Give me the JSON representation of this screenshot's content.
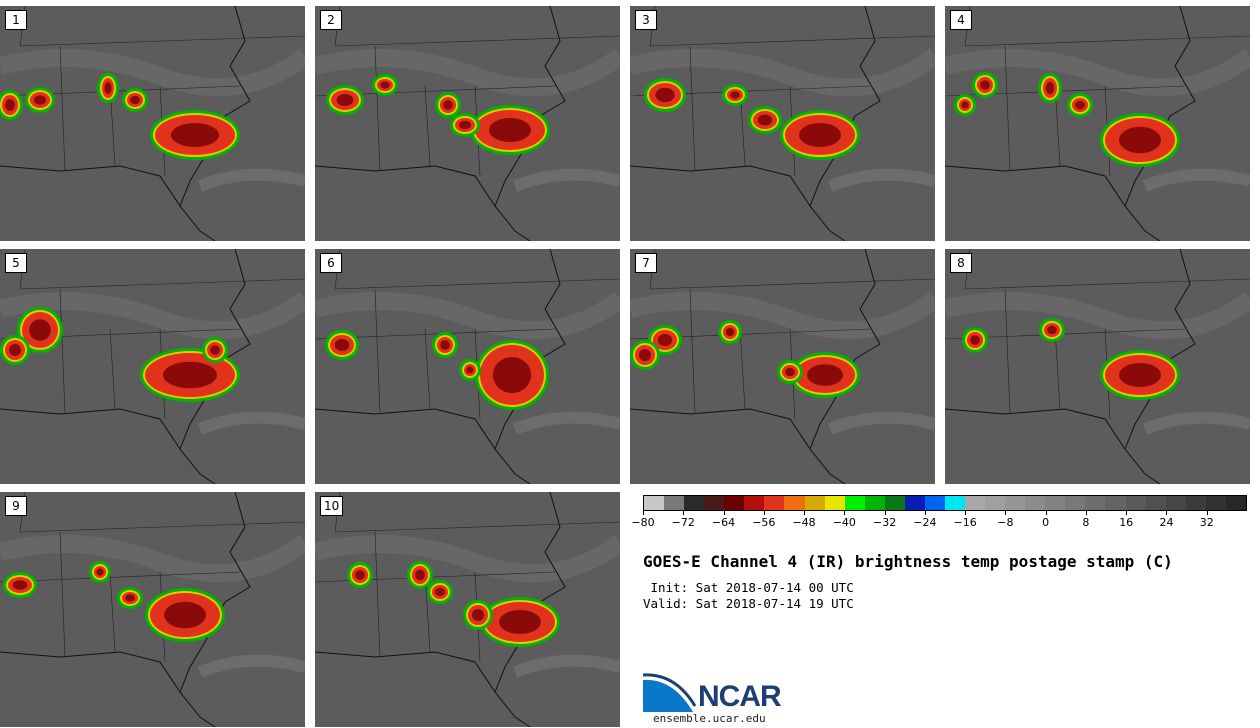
{
  "panels": [
    {
      "label": "1"
    },
    {
      "label": "2"
    },
    {
      "label": "3"
    },
    {
      "label": "4"
    },
    {
      "label": "5"
    },
    {
      "label": "6"
    },
    {
      "label": "7"
    },
    {
      "label": "8"
    },
    {
      "label": "9"
    },
    {
      "label": "10"
    }
  ],
  "colorbar": {
    "colors": [
      "#c8c8c8",
      "#787878",
      "#2b2b2b",
      "#4b1a1a",
      "#6b0000",
      "#b40f0f",
      "#e1321e",
      "#f06e0f",
      "#d7aa00",
      "#e6e600",
      "#00f000",
      "#00b400",
      "#0a7814",
      "#0a1eb4",
      "#0064f0",
      "#00e6f0",
      "#a8a8a8",
      "#a0a0a0",
      "#969696",
      "#8c8c8c",
      "#828282",
      "#787878",
      "#6e6e6e",
      "#646464",
      "#5a5a5a",
      "#505050",
      "#464646",
      "#3c3c3c",
      "#323232",
      "#282828"
    ],
    "tick_labels": [
      "−80",
      "−72",
      "−64",
      "−56",
      "−48",
      "−40",
      "−32",
      "−24",
      "−16",
      "−8",
      "0",
      "8",
      "16",
      "24",
      "32"
    ]
  },
  "title": "GOES-E Channel 4 (IR) brightness temp postage stamp (C)",
  "init": " Init: Sat 2018-07-14 00 UTC",
  "valid": "Valid: Sat 2018-07-14 19 UTC",
  "logo": {
    "text": "NCAR",
    "site": "ensemble.ucar.edu",
    "color": "#1d3f73",
    "accent": "#0a78c8"
  }
}
